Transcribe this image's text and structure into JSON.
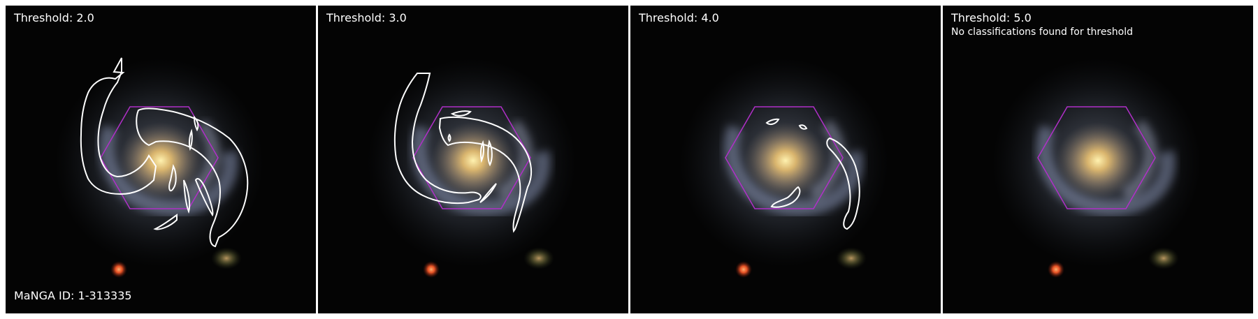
{
  "panels": [
    {
      "threshold": "Threshold: 2.0",
      "note": "",
      "contours": "t2"
    },
    {
      "threshold": "Threshold: 3.0",
      "note": "",
      "contours": "t3"
    },
    {
      "threshold": "Threshold: 4.0",
      "note": "",
      "contours": "t4"
    },
    {
      "threshold": "Threshold: 5.0",
      "note": "No classifications found for threshold",
      "contours": "none"
    }
  ],
  "manga_id": "MaNGA ID: 1-313335",
  "colors": {
    "contour": "#ffffff",
    "hexagon": "#b02fc8",
    "background": "#040404",
    "galaxy_core": "#ffe08a",
    "galaxy_arm": "#aab4d8",
    "red_star": "#ff5a28"
  }
}
